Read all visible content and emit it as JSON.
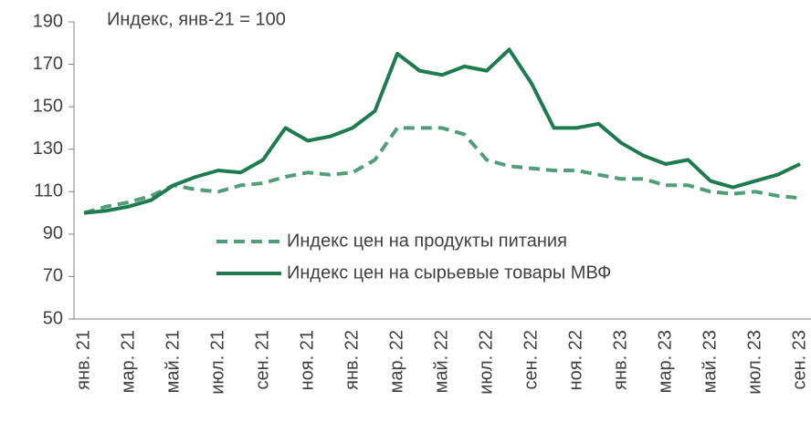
{
  "chart_data": {
    "type": "line",
    "annotation": "Индекс, янв-21 = 100",
    "categories": [
      "янв. 21",
      null,
      "мар. 21",
      null,
      "май. 21",
      null,
      "июл. 21",
      null,
      "сен. 21",
      null,
      "ноя. 21",
      null,
      "янв. 22",
      null,
      "мар. 22",
      null,
      "май. 22",
      null,
      "июл. 22",
      null,
      "сен. 22",
      null,
      "ноя. 22",
      null,
      "янв. 23",
      null,
      "мар. 23",
      null,
      "май. 23",
      null,
      "июл. 23",
      null,
      "сен. 23"
    ],
    "series": [
      {
        "name": "Индекс цен на продукты питания",
        "color": "#4f9e78",
        "dashed": true,
        "values": [
          100,
          103,
          105,
          108,
          113,
          111,
          110,
          113,
          114,
          117,
          119,
          118,
          119,
          125,
          140,
          140,
          140,
          137,
          125,
          122,
          121,
          120,
          120,
          118,
          116,
          116,
          113,
          113,
          110,
          109,
          110,
          108,
          107
        ]
      },
      {
        "name": "Индекс цен на сырьевые товары МВФ",
        "color": "#1e7b4f",
        "dashed": false,
        "values": [
          100,
          101,
          103,
          106,
          113,
          117,
          120,
          119,
          125,
          140,
          134,
          136,
          140,
          148,
          175,
          167,
          165,
          169,
          167,
          177,
          161,
          140,
          140,
          142,
          133,
          127,
          123,
          125,
          115,
          112,
          115,
          118,
          123
        ]
      }
    ],
    "ylim": [
      50,
      190
    ],
    "yticks": [
      50,
      70,
      90,
      110,
      130,
      150,
      170,
      190
    ],
    "grid": false
  }
}
